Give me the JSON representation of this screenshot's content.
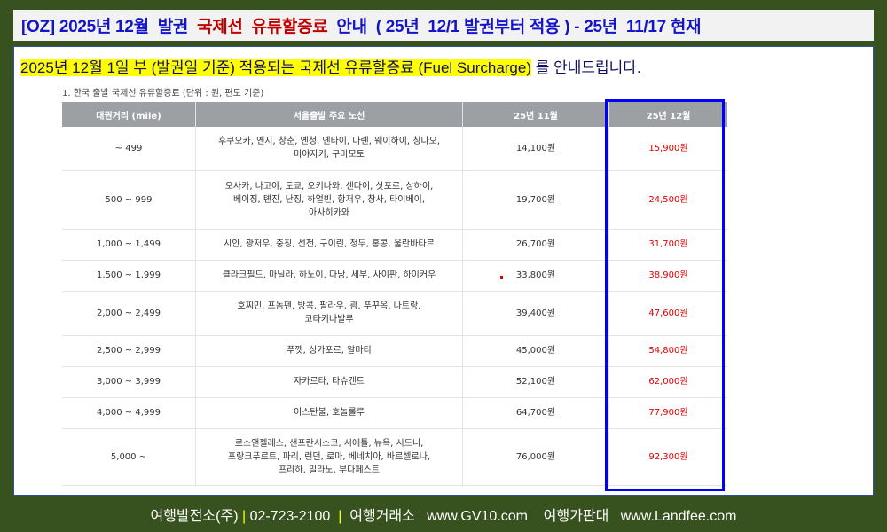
{
  "title": {
    "part1": "[OZ] 2025년 12월  발권 ",
    "part2": " 국제선  유류할증료 ",
    "part3": " 안내  ( 25년  12/1 발권부터 적용 ) - 25년  11/17 현재"
  },
  "headline": {
    "highlighted": "2025년 12월 1일 부 (발권일 기준) 적용되는 국제선 유류할증료 (Fuel Surcharge)",
    "rest": " 를 안내드립니다."
  },
  "subtitle": "1. 한국 출발 국제선 유류할증료 (단위 : 원, 편도 기준)",
  "table": {
    "headers": [
      "대권거리 (mile)",
      "서울출발 주요 노선",
      "25년 11월",
      "25년 12월"
    ],
    "rows": [
      {
        "distance": "~ 499",
        "routes": [
          "후쿠오카, 옌지, 창춘, 옌청, 옌타이, 다롄, 웨이하이, 칭다오,",
          "미야자키, 구마모토"
        ],
        "nov": "14,100원",
        "dec": "15,900원"
      },
      {
        "distance": "500 ~ 999",
        "routes": [
          "오사카, 나고야, 도쿄, 오키나와, 센다이, 삿포로, 상하이,",
          "베이징, 톈진, 난징, 하얼빈, 항저우, 창사, 타이베이,",
          "아사히카와"
        ],
        "nov": "19,700원",
        "dec": "24,500원"
      },
      {
        "distance": "1,000 ~ 1,499",
        "routes": [
          "시안, 광저우, 충칭, 선전, 구이린, 청두, 홍콩, 울란바타르"
        ],
        "nov": "26,700원",
        "dec": "31,700원"
      },
      {
        "distance": "1,500 ~ 1,999",
        "routes": [
          "클라크필드, 마닐라, 하노이, 다낭, 세부, 사이판, 하이커우"
        ],
        "nov": "33,800원",
        "dec": "38,900원"
      },
      {
        "distance": "2,000 ~ 2,499",
        "routes": [
          "호찌민, 프놈펜, 방콕, 팔라우, 괌, 푸꾸옥, 나트랑,",
          "코타키나발루"
        ],
        "nov": "39,400원",
        "dec": "47,600원"
      },
      {
        "distance": "2,500 ~ 2,999",
        "routes": [
          "푸껫, 싱가포르, 알마티"
        ],
        "nov": "45,000원",
        "dec": "54,800원"
      },
      {
        "distance": "3,000 ~ 3,999",
        "routes": [
          "자카르타, 타슈켄트"
        ],
        "nov": "52,100원",
        "dec": "62,000원"
      },
      {
        "distance": "4,000 ~ 4,999",
        "routes": [
          "이스탄불, 호놀룰루"
        ],
        "nov": "64,700원",
        "dec": "77,900원"
      },
      {
        "distance": "5,000 ~",
        "routes": [
          "로스앤젤레스, 샌프란시스코, 시애틀, 뉴욕, 시드니,",
          "프랑크푸르트, 파리, 런던, 로마, 베네치아, 바르셀로나,",
          "프라하, 밀라노, 부다페스트"
        ],
        "nov": "76,000원",
        "dec": "92,300원"
      }
    ]
  },
  "footer": {
    "company": "여행발전소(주) ",
    "phone": " 02-723-2100  ",
    "site1_name": "  여행거래소   ",
    "site1_url": "www.GV10.com",
    "site2_name": "    여행가판대   ",
    "site2_url": "www.Landfee.com"
  },
  "colors": {
    "background": "#38521f",
    "title_blue": "#1414c8",
    "title_red": "#c00000",
    "highlight": "#ffff00",
    "new_price": "#e00000",
    "box": "#0000ff"
  }
}
